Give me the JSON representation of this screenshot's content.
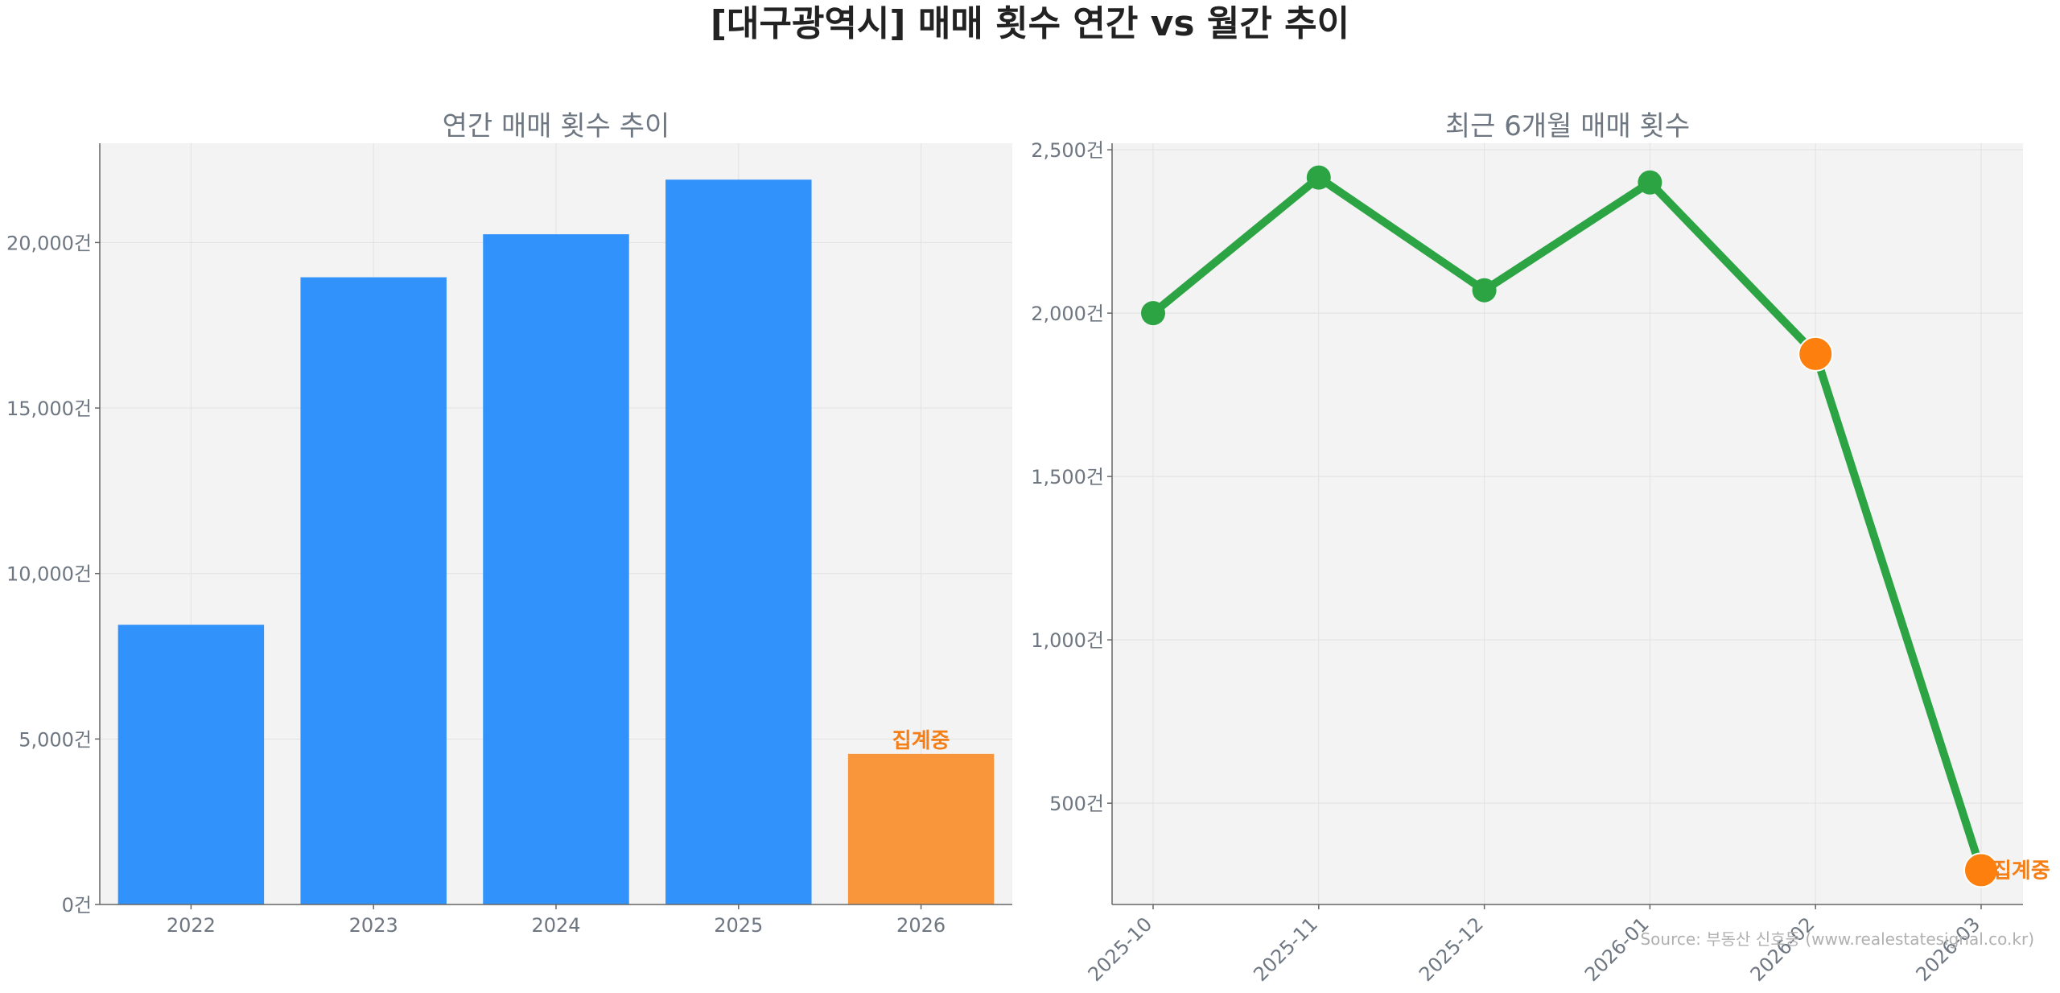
{
  "title": "[대구광역시] 매매 횟수 연간 vs 월간 추이",
  "source": "Source: 부동산 신호등 (www.realestatesignal.co.kr)",
  "colors": {
    "bar": "#3192fb",
    "bar_highlight": "#f9963c",
    "line": "#2ca444",
    "point_highlight": "#fd7f0e",
    "label_highlight": "#f47f17",
    "panel_bg": "#f3f3f3",
    "axis_text": "#6e7781"
  },
  "chart_data": [
    {
      "type": "bar",
      "title": "연간 매매 횟수 추이",
      "categories": [
        "2022",
        "2023",
        "2024",
        "2025",
        "2026"
      ],
      "values": [
        8450,
        18950,
        20250,
        21900,
        4550
      ],
      "highlight_index": 4,
      "highlight_label": "집계중",
      "ylim": [
        0,
        23000
      ],
      "yticks": [
        0,
        5000,
        10000,
        15000,
        20000
      ],
      "ytick_labels": [
        "0건",
        "5,000건",
        "10,000건",
        "15,000건",
        "20,000건"
      ],
      "grid": true
    },
    {
      "type": "line",
      "title": "최근 6개월 매매 횟수",
      "x": [
        "2025-10",
        "2025-11",
        "2025-12",
        "2026-01",
        "2026-02",
        "2026-03"
      ],
      "values": [
        2000,
        2415,
        2070,
        2400,
        1875,
        295
      ],
      "highlight_indices": [
        4,
        5
      ],
      "highlight_label": "집계중",
      "ylim": [
        190,
        2520
      ],
      "yticks": [
        500,
        1000,
        1500,
        2000,
        2500
      ],
      "ytick_labels": [
        "500건",
        "1,000건",
        "1,500건",
        "2,000건",
        "2,500건"
      ],
      "grid": true
    }
  ]
}
